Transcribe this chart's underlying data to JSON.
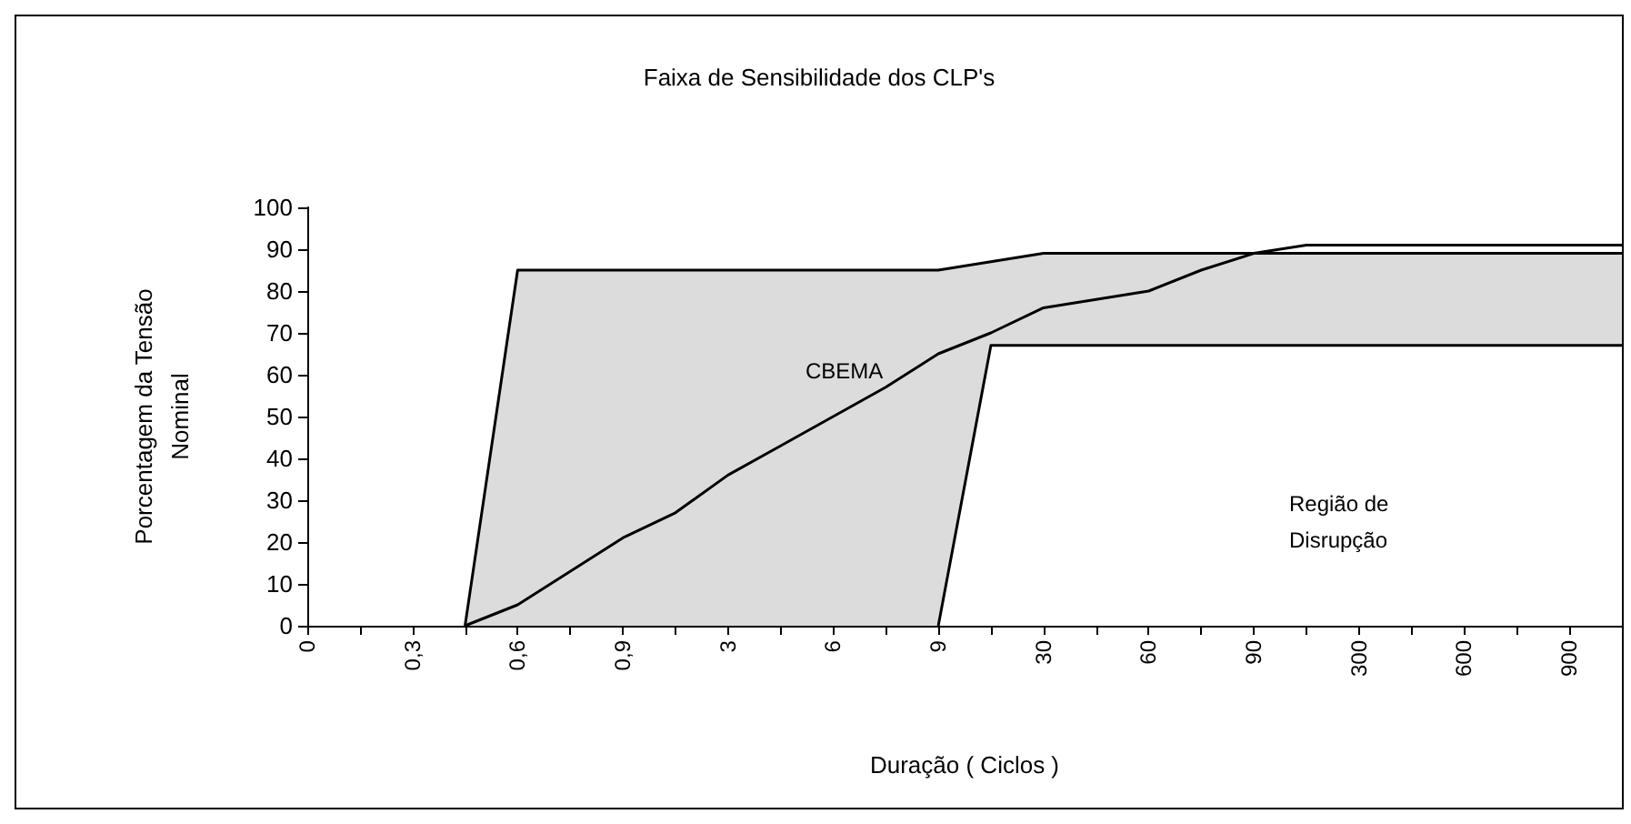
{
  "chart_data": {
    "type": "line",
    "title": "Faixa de Sensibilidade dos CLP's",
    "xlabel": "Duração ( Ciclos )",
    "ylabel": "Porcentagem da Tensão\nNominal",
    "categories": [
      "0",
      null,
      "0,3",
      null,
      "0,6",
      null,
      "0,9",
      null,
      "3",
      null,
      "6",
      null,
      "9",
      null,
      "30",
      null,
      "60",
      null,
      "90",
      null,
      "300",
      null,
      "600",
      null,
      "900",
      null
    ],
    "ylim": [
      0,
      100
    ],
    "yticks": [
      0,
      10,
      20,
      30,
      40,
      50,
      60,
      70,
      80,
      90,
      100
    ],
    "series": [
      {
        "type": "area",
        "color": "#000000",
        "values": [
          null,
          null,
          null,
          0,
          85,
          85,
          85,
          85,
          85,
          85,
          85,
          85,
          85,
          87,
          89,
          89,
          89,
          89,
          89,
          89,
          89,
          89,
          89,
          89,
          89,
          89
        ]
      },
      {
        "type": "area",
        "color": "#000000",
        "values": [
          null,
          null,
          null,
          null,
          null,
          null,
          null,
          null,
          null,
          null,
          null,
          null,
          0,
          67,
          67,
          67,
          67,
          67,
          67,
          67,
          67,
          67,
          67,
          67,
          67,
          67
        ]
      },
      {
        "color": "#000000",
        "values": [
          null,
          null,
          null,
          0,
          5,
          13,
          21,
          27,
          36,
          43,
          50,
          57,
          65,
          70,
          76,
          78,
          80,
          85,
          89,
          91,
          91,
          91,
          91,
          91,
          91,
          91
        ]
      }
    ],
    "annotations": [
      "CBEMA",
      "Região de\nDisrupção"
    ],
    "marker": "none",
    "line_style": "solid",
    "grid": false
  }
}
